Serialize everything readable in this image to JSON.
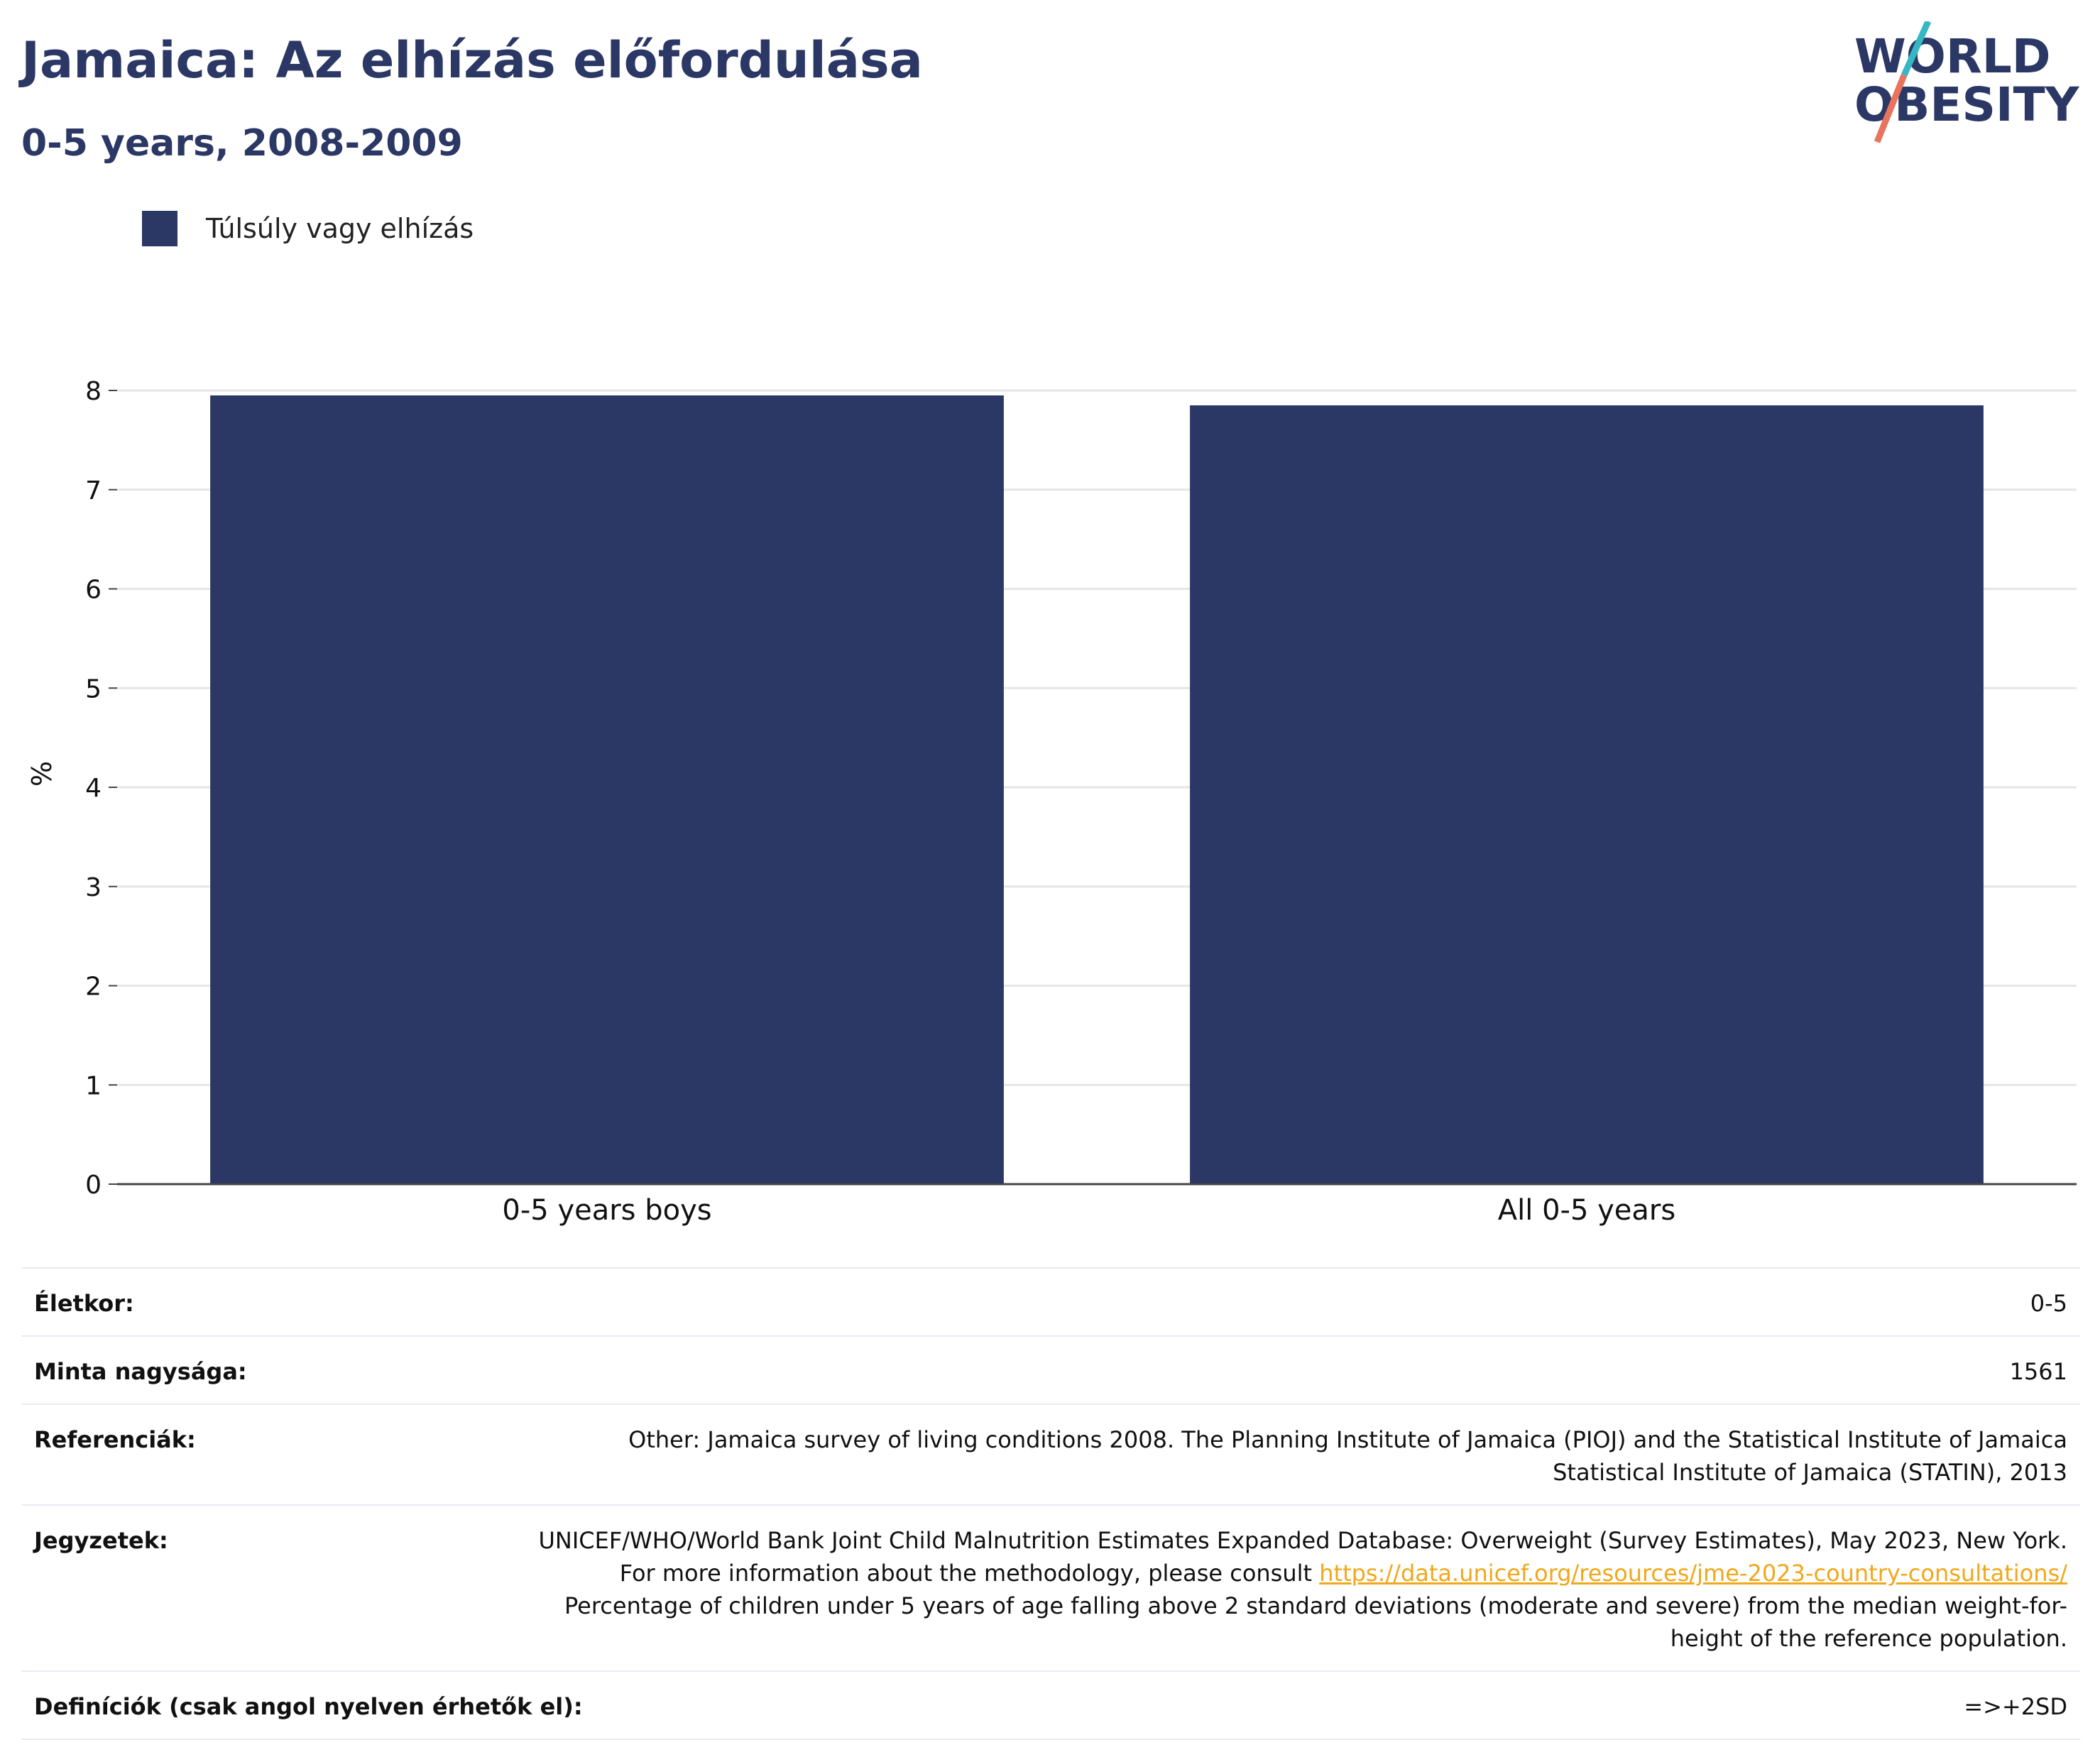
{
  "header": {
    "title": "Jamaica: Az elhízás előfordulása",
    "subtitle": "0-5 years, 2008-2009"
  },
  "logo": {
    "line1": "WORLD",
    "line2": "OBESITY",
    "colors": {
      "text": "#2b3764",
      "slash_top": "#36b8c2",
      "slash_bottom": "#e8735f"
    }
  },
  "legend": {
    "label": "Túlsúly vagy elhízás",
    "color": "#2b3764"
  },
  "chart_data": {
    "type": "bar",
    "categories": [
      "0-5 years boys",
      "All 0-5 years"
    ],
    "series": [
      {
        "name": "Túlsúly vagy elhízás",
        "values": [
          7.95,
          7.85
        ],
        "color": "#2b3764"
      }
    ],
    "ylabel": "%",
    "xlabel": "",
    "ylim": [
      0,
      8
    ],
    "yticks": [
      0,
      1,
      2,
      3,
      4,
      5,
      6,
      7,
      8
    ],
    "grid": true,
    "legend_position": "top-left"
  },
  "info": {
    "rows": [
      {
        "key": "Életkor:",
        "value": "0-5"
      },
      {
        "key": "Minta nagysága:",
        "value": "1561"
      },
      {
        "key": "Referenciák:",
        "value": "Other: Jamaica survey of living conditions 2008. The Planning Institute of Jamaica (PIOJ) and the Statistical Institute of Jamaica Statistical Institute of Jamaica (STATIN), 2013"
      },
      {
        "key": "Jegyzetek:",
        "value_pre": "UNICEF/WHO/World Bank Joint Child Malnutrition Estimates Expanded Database: Overweight (Survey Estimates), May 2023, New York. For more information about the methodology, please consult ",
        "link": "https://data.unicef.org/resources/jme-2023-country-consultations/",
        "value_post": " Percentage of children under 5 years of age falling above 2 standard deviations (moderate and severe) from the median weight-for-height of the reference population."
      },
      {
        "key": "Definíciók (csak angol nyelven érhetők el):",
        "value": "=>+2SD"
      }
    ]
  }
}
